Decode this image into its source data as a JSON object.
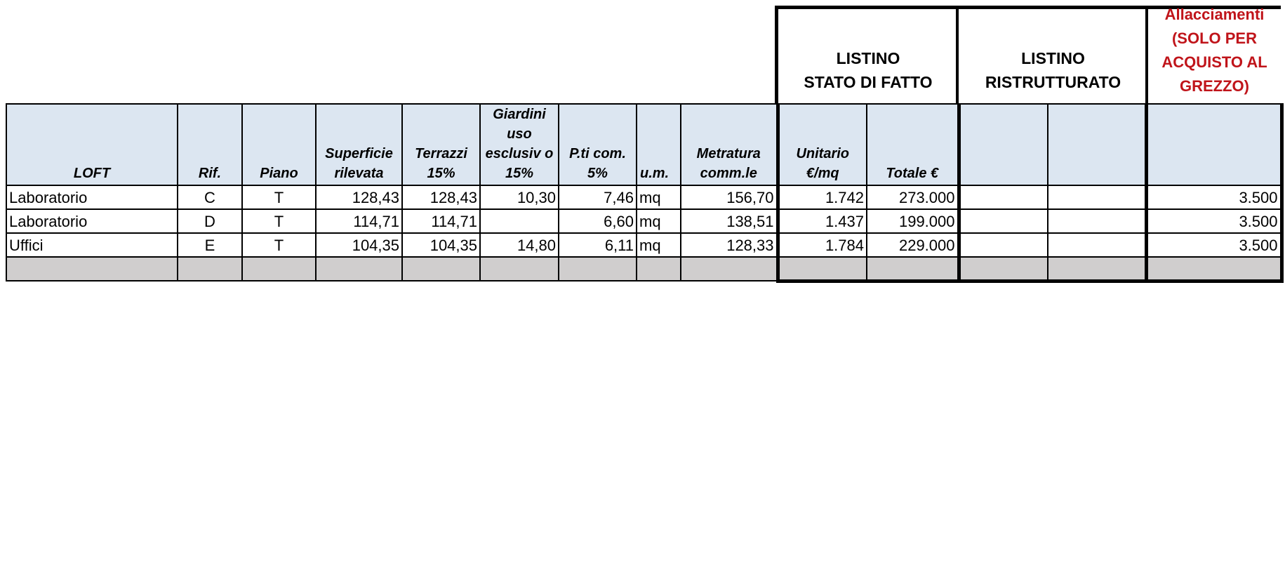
{
  "group_headers": {
    "stato_di_fatto": [
      "LISTINO",
      "STATO DI FATTO"
    ],
    "ristrutturato": [
      "LISTINO",
      "RISTRUTTURATO"
    ],
    "allacciamenti": [
      "Allacciamenti",
      "(SOLO PER",
      "ACQUISTO AL",
      "GREZZO)"
    ]
  },
  "columns": {
    "loft": "LOFT",
    "rif": "Rif.",
    "piano": "Piano",
    "superficie": "Superficie rilevata",
    "terrazzi": "Terrazzi 15%",
    "giardini": "Giardini uso esclusiv o 15%",
    "pti_com": "P.ti com. 5%",
    "um": "u.m.",
    "metratura": "Metratura comm.le",
    "unitario": "Unitario €/mq",
    "totale": "Totale €",
    "ristr_1": "",
    "ristr_2": "",
    "allacciamenti": ""
  },
  "rows": [
    {
      "loft": "Laboratorio",
      "rif": "C",
      "piano": "T",
      "superficie": "128,43",
      "terrazzi": "128,43",
      "giardini": "10,30",
      "pti_com": "7,46",
      "um": "mq",
      "metratura": "156,70",
      "unitario": "1.742",
      "totale": "273.000",
      "ristr_1": "",
      "ristr_2": "",
      "allacciamenti": "3.500"
    },
    {
      "loft": "Laboratorio",
      "rif": "D",
      "piano": "T",
      "superficie": "114,71",
      "terrazzi": "114,71",
      "giardini": "",
      "pti_com": "6,60",
      "um": "mq",
      "metratura": "138,51",
      "unitario": "1.437",
      "totale": "199.000",
      "ristr_1": "",
      "ristr_2": "",
      "allacciamenti": "3.500"
    },
    {
      "loft": "Uffici",
      "rif": "E",
      "piano": "T",
      "superficie": "104,35",
      "terrazzi": "104,35",
      "giardini": "14,80",
      "pti_com": "6,11",
      "um": "mq",
      "metratura": "128,33",
      "unitario": "1.784",
      "totale": "229.000",
      "ristr_1": "",
      "ristr_2": "",
      "allacciamenti": "3.500"
    }
  ],
  "colors": {
    "header_fill": "#dce6f1",
    "empty_row_fill": "#d0cece",
    "allacciamenti_text": "#c0141a"
  }
}
